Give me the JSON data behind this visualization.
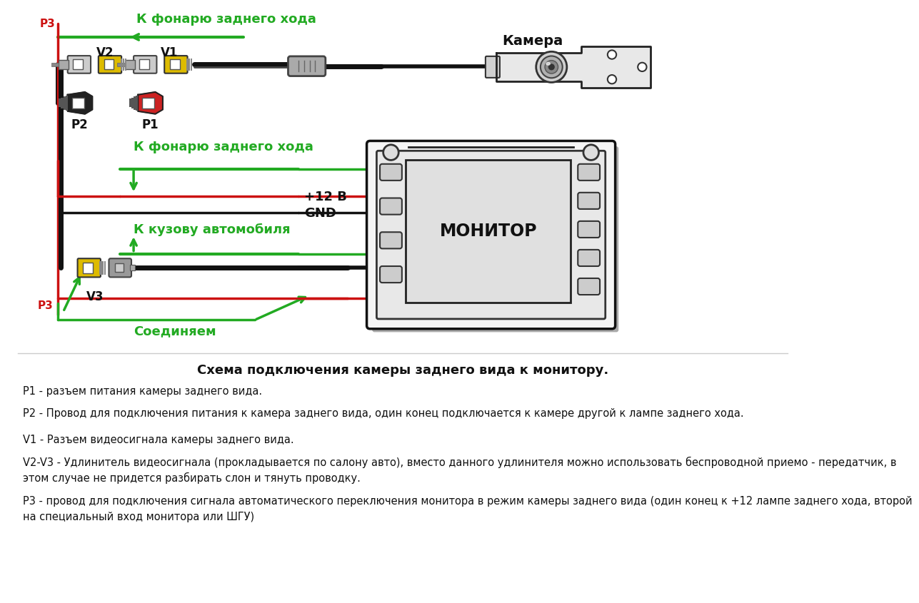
{
  "bg_color": "#ffffff",
  "title": "Схема подключения камеры заднего вида к монитору.",
  "green_color": "#22aa22",
  "red_color": "#cc1111",
  "black_color": "#111111",
  "gray_color": "#888888",
  "label_p3_top": "P3",
  "label_k_fonarju": "К фонарю заднего хода",
  "label_v2": "V2",
  "label_v1": "V1",
  "label_p2": "P2",
  "label_p1": "P1",
  "label_kamera": "Камера",
  "label_k_fonarju2": "К фонарю заднего хода",
  "label_12v": "+12 В",
  "label_gnd": "GND",
  "label_k_kuzovu": "К кузову автомобиля",
  "label_v3": "V3",
  "label_soed": "Соединяем",
  "label_monitor": "МОНИТОР",
  "desc_title": "Схема подключения камеры заднего вида к монитору.",
  "desc_p1": "P1 - разъем питания камеры заднего вида.",
  "desc_p2": "P2 - Провод для подключения питания к камера заднего вида, один конец подключается к камере другой к лампе заднего хода.",
  "desc_v1": "V1 - Разъем видеосигнала камеры заднего вида.",
  "desc_v2v3_1": "V2-V3 - Удлинитель видеосигнала (прокладывается по салону авто), вместо данного удлинителя можно использовать беспроводной приемо - передатчик, в",
  "desc_v2v3_2": "этом случае не придется разбирать слон и тянуть проводку.",
  "desc_p3_1": "P3 - провод для подключения сигнала автоматического переключения монитора в режим камеры заднего вида (один конец к +12 лампе заднего хода, второй",
  "desc_p3_2": "на специальный вход монитора или ШГУ)"
}
